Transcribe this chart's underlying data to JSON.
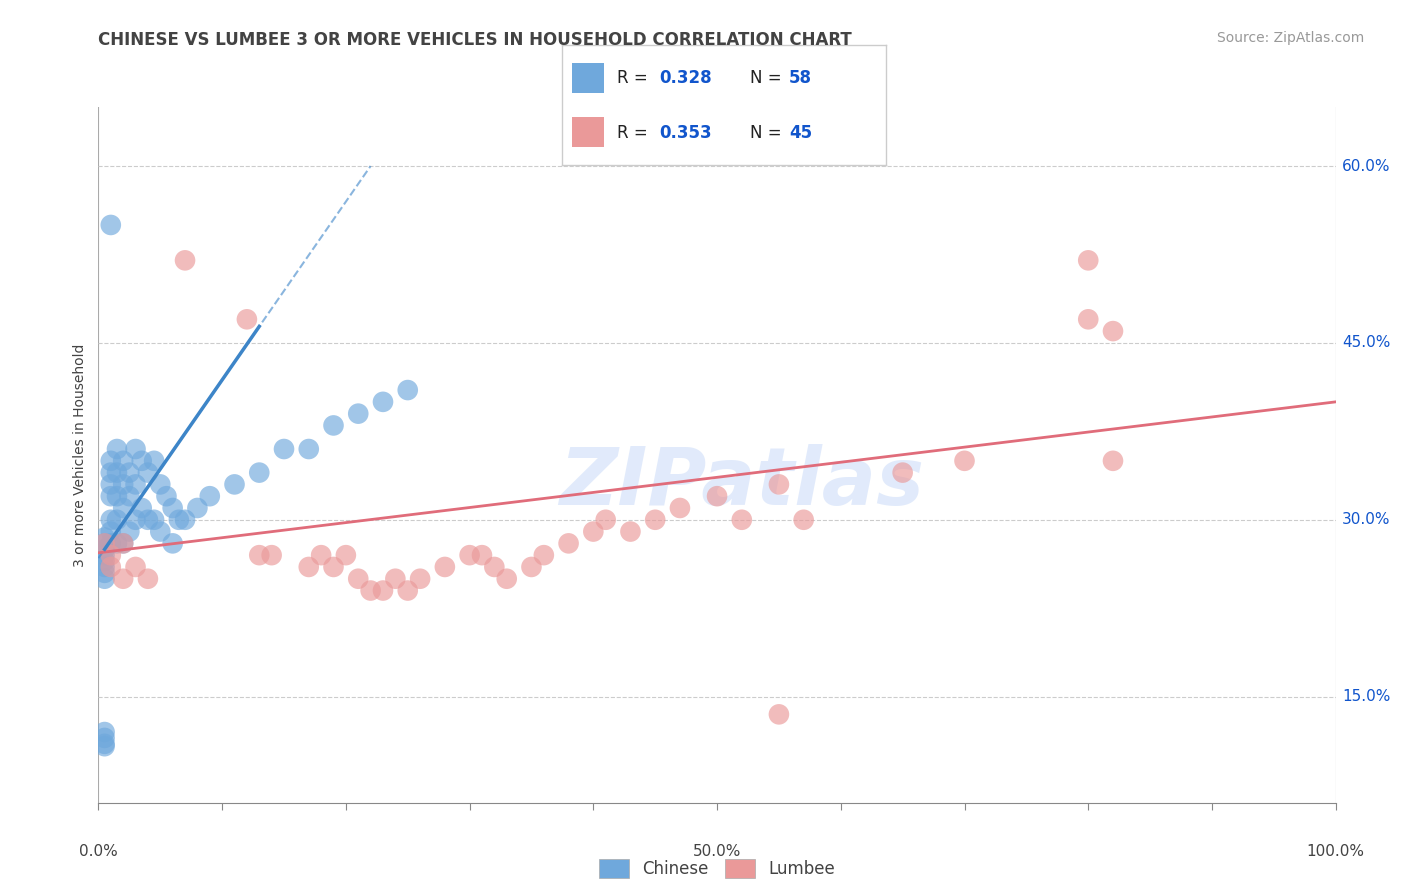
{
  "title": "CHINESE VS LUMBEE 3 OR MORE VEHICLES IN HOUSEHOLD CORRELATION CHART",
  "source": "Source: ZipAtlas.com",
  "ylabel": "3 or more Vehicles in Household",
  "xlim": [
    0.0,
    1.0
  ],
  "ylim": [
    0.06,
    0.65
  ],
  "plot_ylim": [
    0.06,
    0.65
  ],
  "xticks": [
    0.0,
    0.1,
    0.2,
    0.3,
    0.4,
    0.5,
    0.6,
    0.7,
    0.8,
    0.9,
    1.0
  ],
  "xticklabels_bottom": [
    "0.0%",
    "",
    "",
    "",
    "",
    "50.0%",
    "",
    "",
    "",
    "",
    "100.0%"
  ],
  "yticks": [
    0.15,
    0.3,
    0.45,
    0.6
  ],
  "yticklabels": [
    "15.0%",
    "30.0%",
    "45.0%",
    "60.0%"
  ],
  "chinese_color": "#6fa8dc",
  "lumbee_color": "#ea9999",
  "chinese_line_color": "#3d85c8",
  "lumbee_line_color": "#e06c7a",
  "chinese_R": 0.328,
  "chinese_N": 58,
  "lumbee_R": 0.353,
  "lumbee_N": 45,
  "watermark": "ZIPatlas",
  "background_color": "#ffffff",
  "grid_color": "#cccccc",
  "title_color": "#434343",
  "source_color": "#999999",
  "legend_R_N_color": "#1155cc",
  "chinese_x": [
    0.005,
    0.005,
    0.005,
    0.005,
    0.005,
    0.005,
    0.005,
    0.005,
    0.01,
    0.01,
    0.01,
    0.01,
    0.01,
    0.01,
    0.01,
    0.015,
    0.015,
    0.015,
    0.015,
    0.015,
    0.02,
    0.02,
    0.02,
    0.02,
    0.025,
    0.025,
    0.025,
    0.03,
    0.03,
    0.03,
    0.035,
    0.035,
    0.04,
    0.04,
    0.045,
    0.045,
    0.05,
    0.05,
    0.055,
    0.06,
    0.06,
    0.065,
    0.07,
    0.08,
    0.09,
    0.11,
    0.13,
    0.15,
    0.17,
    0.19,
    0.21,
    0.23,
    0.25,
    0.01,
    0.005,
    0.005,
    0.005,
    0.005
  ],
  "chinese_y": [
    0.285,
    0.28,
    0.275,
    0.27,
    0.265,
    0.26,
    0.255,
    0.25,
    0.35,
    0.34,
    0.33,
    0.32,
    0.3,
    0.29,
    0.28,
    0.36,
    0.34,
    0.32,
    0.3,
    0.28,
    0.35,
    0.33,
    0.31,
    0.28,
    0.34,
    0.32,
    0.29,
    0.36,
    0.33,
    0.3,
    0.35,
    0.31,
    0.34,
    0.3,
    0.35,
    0.3,
    0.33,
    0.29,
    0.32,
    0.31,
    0.28,
    0.3,
    0.3,
    0.31,
    0.32,
    0.33,
    0.34,
    0.36,
    0.36,
    0.38,
    0.39,
    0.4,
    0.41,
    0.55,
    0.12,
    0.115,
    0.11,
    0.108
  ],
  "lumbee_x": [
    0.07,
    0.12,
    0.13,
    0.14,
    0.17,
    0.18,
    0.19,
    0.2,
    0.21,
    0.22,
    0.23,
    0.24,
    0.25,
    0.26,
    0.28,
    0.3,
    0.31,
    0.32,
    0.33,
    0.35,
    0.36,
    0.38,
    0.4,
    0.41,
    0.43,
    0.45,
    0.47,
    0.5,
    0.52,
    0.55,
    0.57,
    0.65,
    0.7,
    0.8,
    0.82,
    0.005,
    0.01,
    0.01,
    0.02,
    0.02,
    0.03,
    0.04,
    0.55,
    0.8,
    0.82
  ],
  "lumbee_y": [
    0.52,
    0.47,
    0.27,
    0.27,
    0.26,
    0.27,
    0.26,
    0.27,
    0.25,
    0.24,
    0.24,
    0.25,
    0.24,
    0.25,
    0.26,
    0.27,
    0.27,
    0.26,
    0.25,
    0.26,
    0.27,
    0.28,
    0.29,
    0.3,
    0.29,
    0.3,
    0.31,
    0.32,
    0.3,
    0.33,
    0.3,
    0.34,
    0.35,
    0.52,
    0.35,
    0.28,
    0.27,
    0.26,
    0.25,
    0.28,
    0.26,
    0.25,
    0.135,
    0.47,
    0.46
  ]
}
